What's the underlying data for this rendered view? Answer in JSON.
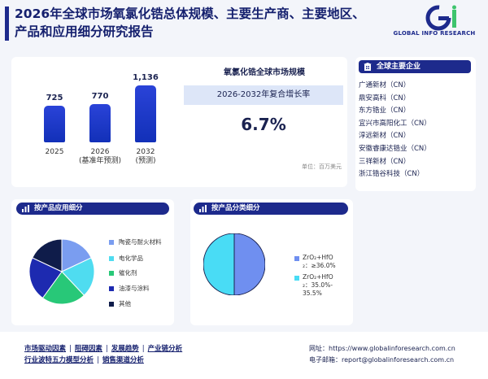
{
  "header": {
    "title": "2026年全球市场氧氯化锆总体规模、主要生产商、主要地区、产品和应用细分研究报告",
    "logo_text": "GLOBAL INFO RESEARCH",
    "brand_color": "#1d2a8c"
  },
  "market_size": {
    "chart_title": "氧氯化锆全球市场规模",
    "cagr_label": "2026-2032年复合增长率",
    "cagr_value": "6.7%",
    "unit": "单位：百万美元",
    "chart_data": {
      "type": "bar",
      "categories": [
        "2025",
        "2026",
        "2032"
      ],
      "category_notes": [
        "",
        "(基准年预测)",
        "(预测)"
      ],
      "values": [
        725,
        770,
        1136
      ],
      "value_labels": [
        "725",
        "770",
        "1,136"
      ]
    }
  },
  "companies": {
    "header": "全球主要企业",
    "items": [
      "广通新材（CN）",
      "鼎安高科（CN）",
      "东方锆业（CN）",
      "宜兴市高阳化工（CN）",
      "淳远新材（CN）",
      "安徽睿康达锆业（CN）",
      "三祥新材（CN）",
      "浙江锆谷科技（CN）"
    ]
  },
  "application": {
    "header": "按产品应用细分",
    "chart_data": {
      "type": "pie",
      "labels": [
        "陶瓷与耐火材料",
        "电化学品",
        "催化剂",
        "油漆与涂料",
        "其他"
      ],
      "values": [
        18,
        20,
        22,
        22,
        18
      ],
      "colors": [
        "#7a9df0",
        "#4fdcf0",
        "#28c878",
        "#1d2ab0",
        "#0f1c4a"
      ]
    }
  },
  "product_type": {
    "header": "按产品分类细分",
    "chart_data": {
      "type": "pie",
      "labels": [
        "ZrO₂+HfO₂：≥36.0%",
        "ZrO₂+HfO₂：35.0%-35.5%"
      ],
      "legend_lines": [
        [
          "ZrO₂+HfO",
          "₂：≥36.0%"
        ],
        [
          "ZrO₂+HfO",
          "₂：35.0%-",
          "35.5%"
        ]
      ],
      "values": [
        50,
        50
      ],
      "colors": [
        "#6f8ff0",
        "#49dcf5"
      ]
    }
  },
  "footer": {
    "links_row1": [
      "市场驱动因素",
      "阻碍因素",
      "发展趋势",
      "产业链分析"
    ],
    "links_row2": [
      "行业波特五力模型分析",
      "销售渠道分析"
    ],
    "website_label": "网址：",
    "website": "https://www.globalinforesearch.com.cn",
    "email_label": "电子邮箱：",
    "email": "report@globalinforesearch.com.cn"
  }
}
